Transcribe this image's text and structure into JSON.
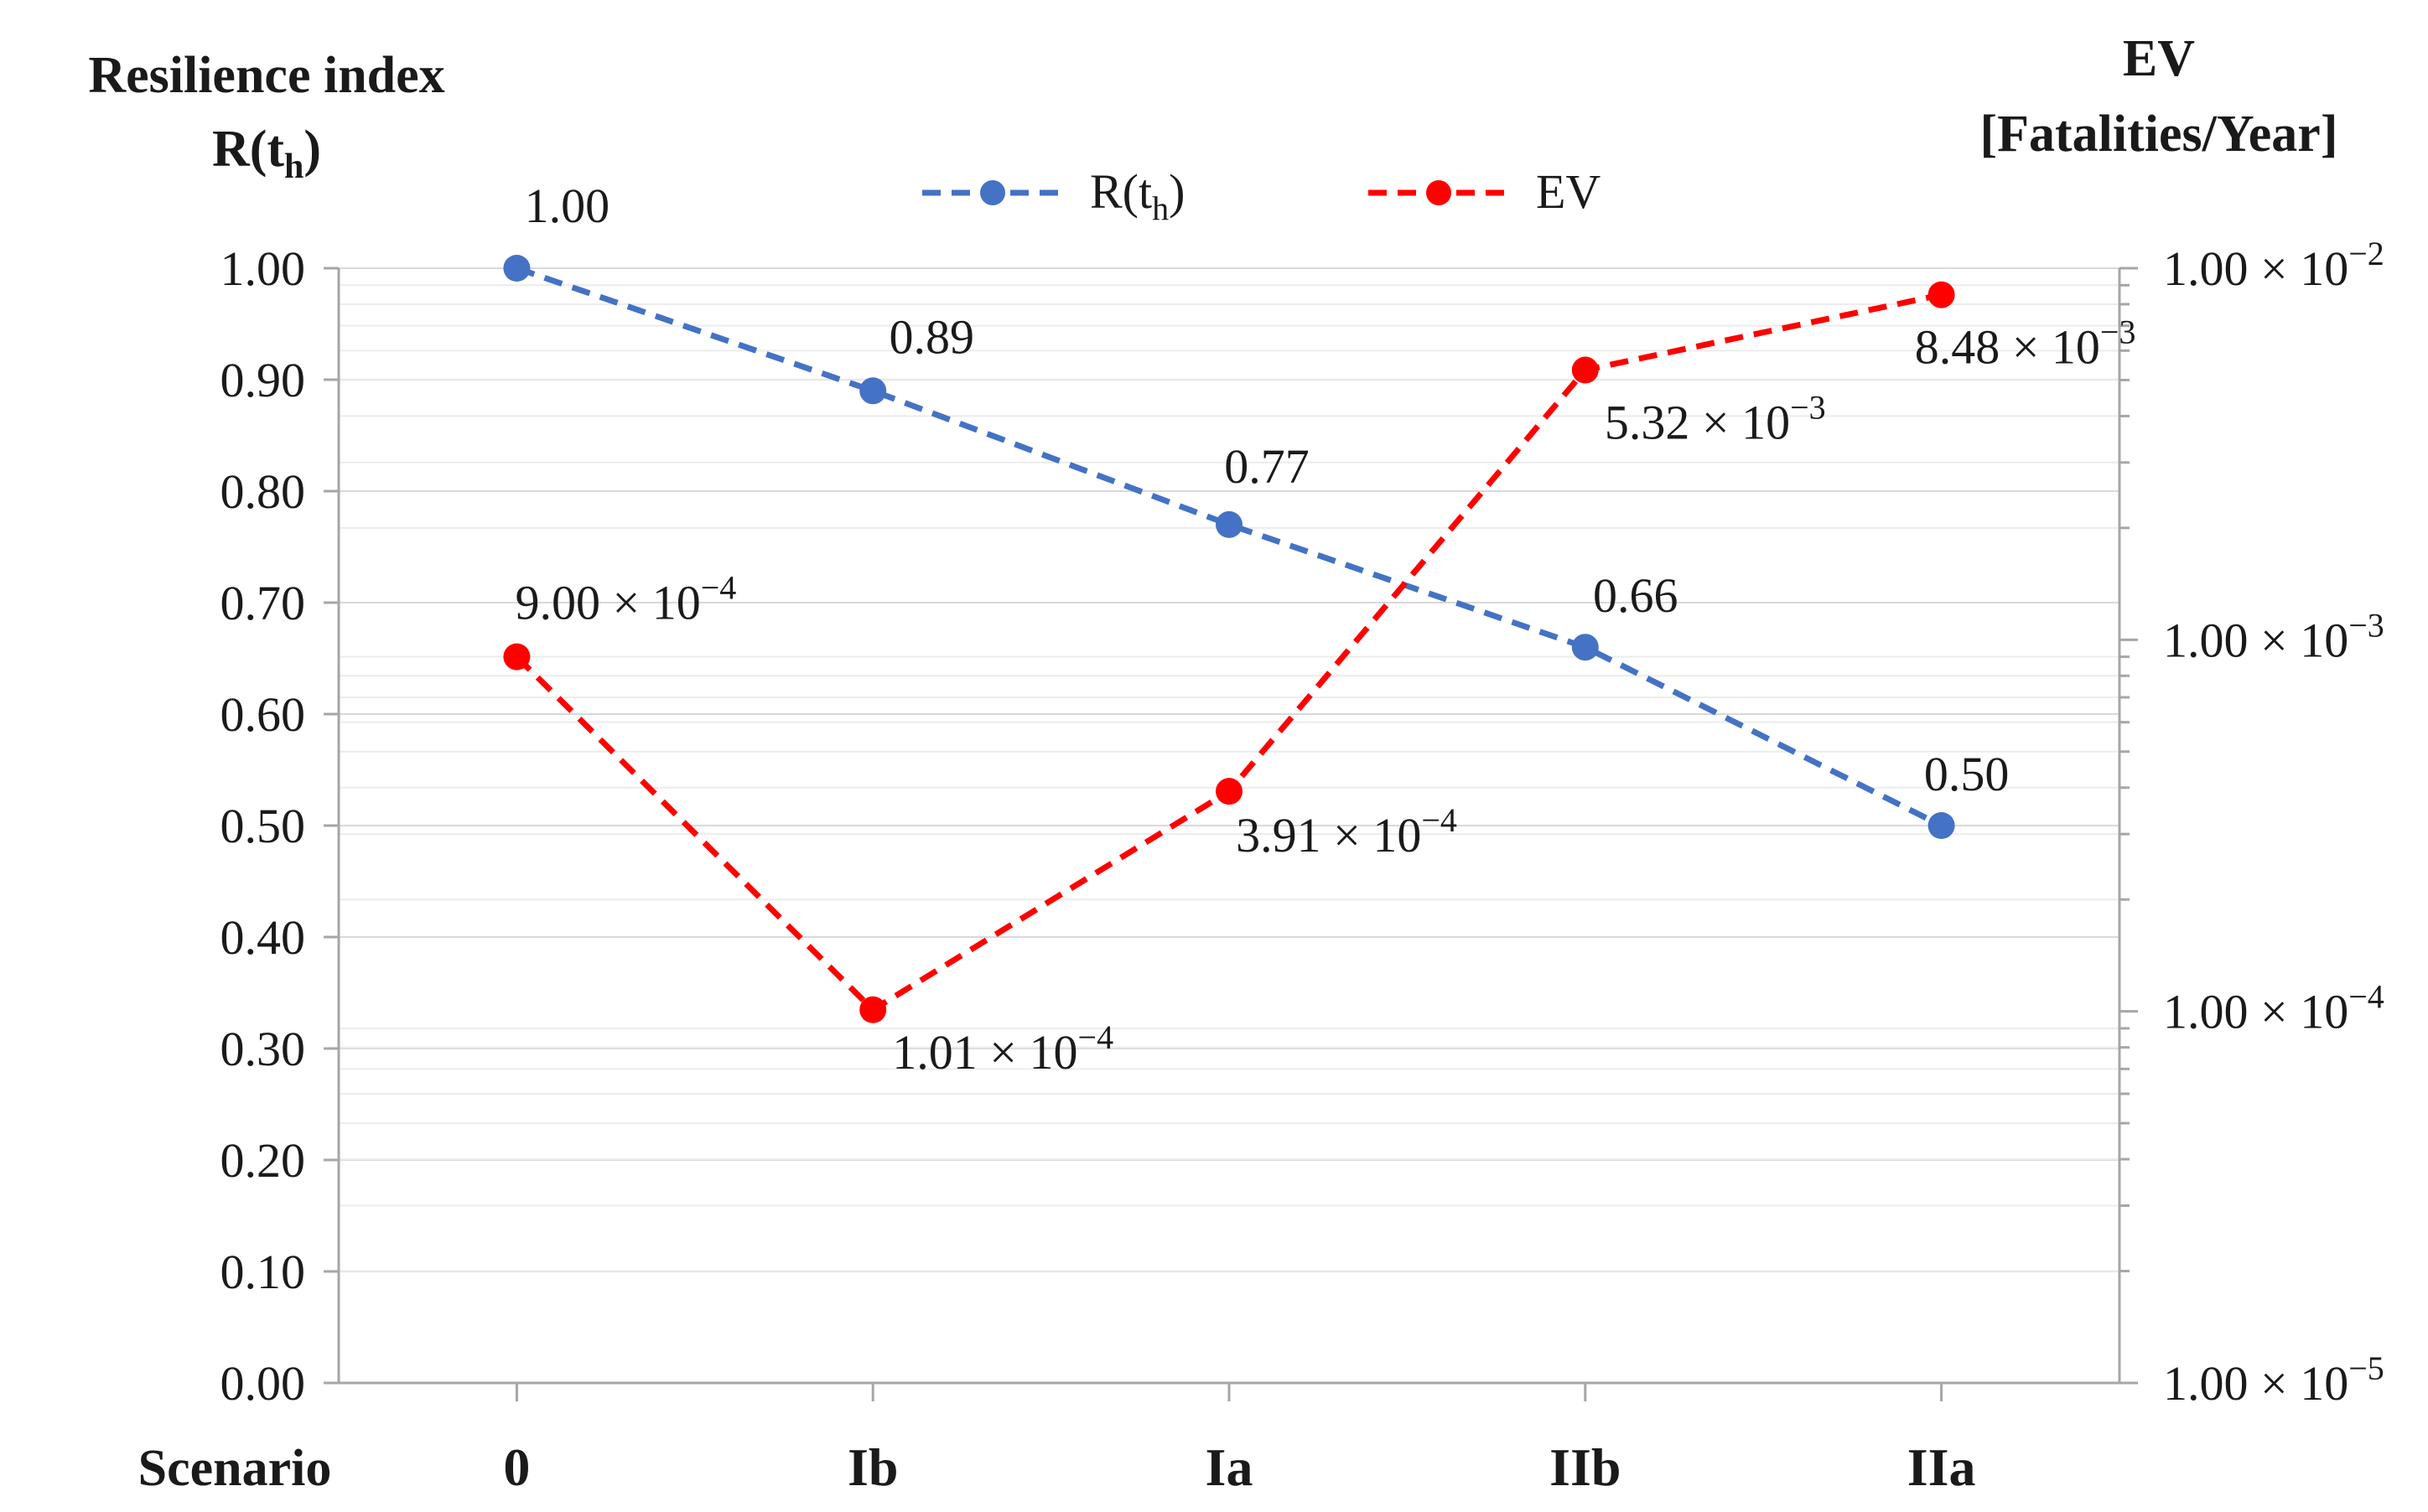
{
  "chart_data": {
    "type": "line",
    "categories": [
      "0",
      "Ib",
      "Ia",
      "IIb",
      "IIa"
    ],
    "xlabel": "Scenario",
    "left_axis": {
      "title_line1": "Resilience index",
      "title_line2_main": "R(t",
      "title_line2_sub": "h",
      "title_line2_end": ")",
      "ylim": [
        0,
        1
      ],
      "ticks": [
        "0.00",
        "0.10",
        "0.20",
        "0.30",
        "0.40",
        "0.50",
        "0.60",
        "0.70",
        "0.80",
        "0.90",
        "1.00"
      ]
    },
    "right_axis": {
      "title_line1": "EV",
      "title_line2": "[Fatalities/Year]",
      "scale": "log",
      "ylim": [
        1e-05,
        0.01
      ],
      "ticks": [
        {
          "value": 0.01,
          "mantissa": "1.00 × 10",
          "exp": "−2"
        },
        {
          "value": 0.001,
          "mantissa": "1.00 × 10",
          "exp": "−3"
        },
        {
          "value": 0.0001,
          "mantissa": "1.00 × 10",
          "exp": "−4"
        },
        {
          "value": 1e-05,
          "mantissa": "1.00 × 10",
          "exp": "−5"
        }
      ]
    },
    "series": [
      {
        "name": "R(th)",
        "legend_main": "R(t",
        "legend_sub": "h",
        "legend_end": ")",
        "color": "#4472C4",
        "axis": "left",
        "values": [
          1.0,
          0.89,
          0.77,
          0.66,
          0.5
        ],
        "labels": [
          "1.00",
          "0.89",
          "0.77",
          "0.66",
          "0.50"
        ]
      },
      {
        "name": "EV",
        "legend_main": "EV",
        "color": "#FF0000",
        "axis": "right",
        "values": [
          0.0009,
          0.000101,
          0.000391,
          0.00532,
          0.00848
        ],
        "labels": [
          {
            "mantissa": "9.00 × 10",
            "exp": "−4"
          },
          {
            "mantissa": "1.01 × 10",
            "exp": "−4"
          },
          {
            "mantissa": "3.91 × 10",
            "exp": "−4"
          },
          {
            "mantissa": "5.32 × 10",
            "exp": "−3"
          },
          {
            "mantissa": "8.48 × 10",
            "exp": "−3"
          }
        ]
      }
    ]
  }
}
